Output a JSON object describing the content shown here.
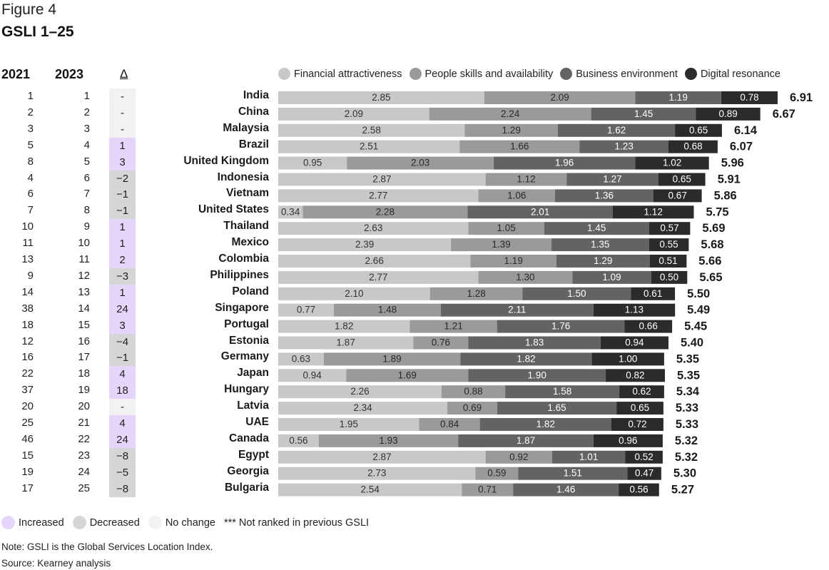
{
  "header": {
    "figure_label": "Figure 4",
    "title": "GSLI 1–25"
  },
  "columns": {
    "y2021": "2021",
    "y2023": "2023",
    "delta": "Δ"
  },
  "colors": {
    "financial": "#c8c8c8",
    "people": "#9a9a9a",
    "business": "#636363",
    "digital": "#2b2b2b",
    "increased": "#e6d5fb",
    "decreased": "#d6d6d6",
    "no_change": "#f2f2f2"
  },
  "bottom_legend": {
    "increased": "Increased",
    "decreased": "Decreased",
    "no_change": "No change",
    "not_ranked": "*** Not ranked in previous GSLI"
  },
  "note": "Note: GSLI is the Global Services Location Index.",
  "source": "Source: Kearney analysis",
  "chart_data": {
    "type": "bar",
    "orientation": "horizontal",
    "stacked": true,
    "categories": [
      "India",
      "China",
      "Malaysia",
      "Brazil",
      "United Kingdom",
      "Indonesia",
      "Vietnam",
      "United States",
      "Thailand",
      "Mexico",
      "Colombia",
      "Philippines",
      "Poland",
      "Singapore",
      "Portugal",
      "Estonia",
      "Germany",
      "Japan",
      "Hungary",
      "Latvia",
      "UAE",
      "Canada",
      "Egypt",
      "Georgia",
      "Bulgaria"
    ],
    "series": [
      {
        "name": "Financial attractiveness",
        "values": [
          "2.85",
          "2.09",
          "2.58",
          "2.51",
          "0.95",
          "2.87",
          "2.77",
          "0.34",
          "2.63",
          "2.39",
          "2.66",
          "2.77",
          "2.10",
          "0.77",
          "1.82",
          "1.87",
          "0.63",
          "0.94",
          "2.26",
          "2.34",
          "1.95",
          "0.56",
          "2.87",
          "2.73",
          "2.54"
        ]
      },
      {
        "name": "People skills and availability",
        "values": [
          "2.09",
          "2.24",
          "1.29",
          "1.66",
          "2.03",
          "1.12",
          "1.06",
          "2.28",
          "1.05",
          "1.39",
          "1.19",
          "1.30",
          "1.28",
          "1.48",
          "1.21",
          "0.76",
          "1.89",
          "1.69",
          "0.88",
          "0.69",
          "0.84",
          "1.93",
          "0.92",
          "0.59",
          "0.71"
        ]
      },
      {
        "name": "Business environment",
        "values": [
          "1.19",
          "1.45",
          "1.62",
          "1.23",
          "1.96",
          "1.27",
          "1.36",
          "2.01",
          "1.45",
          "1.35",
          "1.29",
          "1.09",
          "1.50",
          "2.11",
          "1.76",
          "1.83",
          "1.82",
          "1.90",
          "1.58",
          "1.65",
          "1.82",
          "1.87",
          "1.01",
          "1.51",
          "1.46"
        ]
      },
      {
        "name": "Digital resonance",
        "values": [
          "0.78",
          "0.89",
          "0.65",
          "0.68",
          "1.02",
          "0.65",
          "0.67",
          "1.12",
          "0.57",
          "0.55",
          "0.51",
          "0.50",
          "0.61",
          "1.13",
          "0.66",
          "0.94",
          "1.00",
          "0.82",
          "0.62",
          "0.65",
          "0.72",
          "0.96",
          "0.52",
          "0.47",
          "0.56"
        ]
      }
    ],
    "totals": [
      "6.91",
      "6.67",
      "6.14",
      "6.07",
      "5.96",
      "5.91",
      "5.86",
      "5.75",
      "5.69",
      "5.68",
      "5.66",
      "5.65",
      "5.50",
      "5.49",
      "5.45",
      "5.40",
      "5.35",
      "5.35",
      "5.34",
      "5.33",
      "5.33",
      "5.32",
      "5.32",
      "5.30",
      "5.27"
    ],
    "rank_2021": [
      "1",
      "2",
      "3",
      "5",
      "8",
      "4",
      "6",
      "7",
      "10",
      "11",
      "13",
      "9",
      "14",
      "38",
      "18",
      "12",
      "16",
      "22",
      "37",
      "20",
      "25",
      "46",
      "15",
      "19",
      "17"
    ],
    "rank_2023": [
      "1",
      "2",
      "3",
      "4",
      "5",
      "6",
      "7",
      "8",
      "9",
      "10",
      "11",
      "12",
      "13",
      "14",
      "15",
      "16",
      "17",
      "18",
      "19",
      "20",
      "21",
      "22",
      "23",
      "24",
      "25"
    ],
    "delta": [
      "-",
      "-",
      "-",
      "1",
      "3",
      "−2",
      "−1",
      "−1",
      "1",
      "1",
      "2",
      "−3",
      "1",
      "24",
      "3",
      "−4",
      "−1",
      "4",
      "18",
      "-",
      "4",
      "24",
      "−8",
      "−5",
      "−8"
    ],
    "delta_status": [
      "none",
      "none",
      "none",
      "up",
      "up",
      "down",
      "down",
      "down",
      "up",
      "up",
      "up",
      "down",
      "up",
      "up",
      "up",
      "down",
      "down",
      "up",
      "up",
      "none",
      "up",
      "up",
      "down",
      "down",
      "down"
    ],
    "legend_position": "top-right",
    "grid": false
  }
}
